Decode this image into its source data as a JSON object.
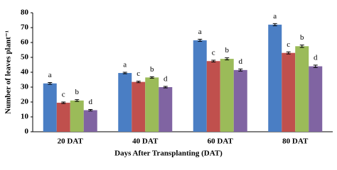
{
  "chart_data": {
    "type": "bar",
    "x_label": "Days After Transplanting (DAT)",
    "y_label": "Number of leaves plant⁻¹",
    "categories": [
      "20 DAT",
      "40 DAT",
      "60 DAT",
      "80 DAT"
    ],
    "series": [
      {
        "color": "#4a7ec4",
        "values": [
          32.5,
          39.5,
          61.5,
          72
        ],
        "errors": [
          0.6,
          0.5,
          0.7,
          0.7
        ],
        "letters": [
          "a",
          "a",
          "a",
          "a"
        ]
      },
      {
        "color": "#c0504d",
        "values": [
          19.5,
          33.5,
          47.5,
          53
        ],
        "errors": [
          0.5,
          0.5,
          0.6,
          0.7
        ],
        "letters": [
          "c",
          "c",
          "c",
          "c"
        ]
      },
      {
        "color": "#9bbb59",
        "values": [
          21,
          36.5,
          49,
          57.5
        ],
        "errors": [
          0.6,
          0.5,
          0.7,
          0.8
        ],
        "letters": [
          "b",
          "b",
          "b",
          "b"
        ]
      },
      {
        "color": "#8064a2",
        "values": [
          14.5,
          30,
          41.5,
          44
        ],
        "errors": [
          0.5,
          0.5,
          0.7,
          0.8
        ],
        "letters": [
          "d",
          "d",
          "d",
          "d"
        ]
      }
    ],
    "ylim": [
      0,
      80
    ],
    "yticks": [
      0,
      10,
      20,
      30,
      40,
      50,
      60,
      70,
      80
    ],
    "grid": false
  }
}
